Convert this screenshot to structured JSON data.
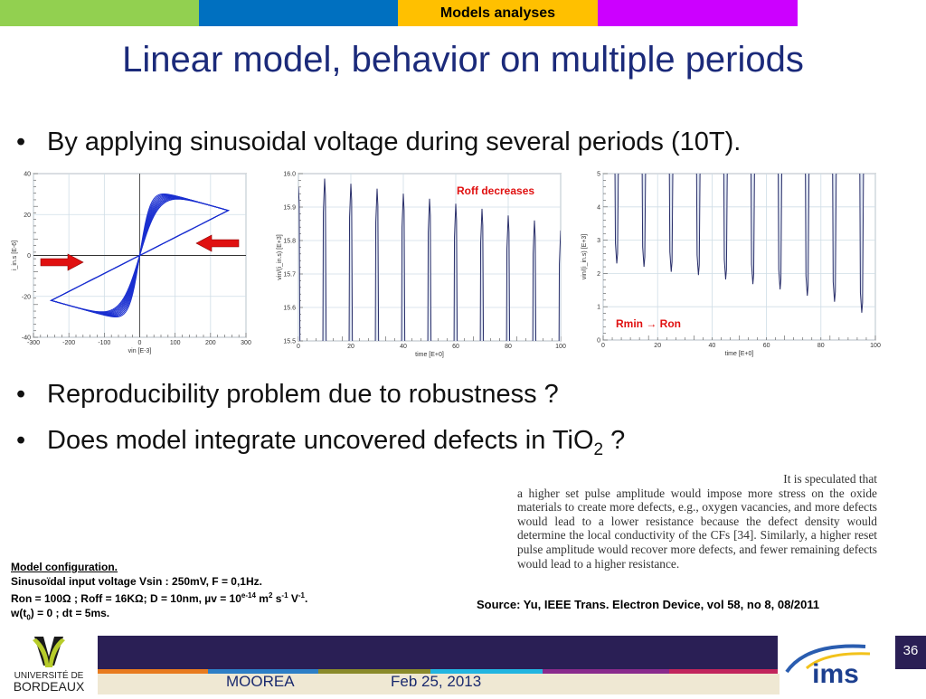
{
  "header": {
    "section_label": "Models analyses",
    "colors": [
      "#92d050",
      "#0070c0",
      "#ffc000",
      "#cc00ff"
    ]
  },
  "title": "Linear model, behavior on multiple periods",
  "bullets": [
    "By applying sinusoidal voltage during several periods (10T).",
    "Reproducibility problem due to robustness ?",
    "Does model integrate uncovered defects in TiO",
    "2",
    " ?"
  ],
  "chart_data": [
    {
      "type": "line",
      "title": "",
      "xlabel": "vin  [E-3]",
      "ylabel": "i_in.s  [E-6]",
      "xlim": [
        -300,
        300
      ],
      "ylim": [
        -40,
        40
      ],
      "xticks": [
        "-300",
        "-200",
        "-100",
        "0",
        "100",
        "200",
        "300"
      ],
      "yticks": [
        "-40",
        "-20",
        "0",
        "20",
        "40"
      ],
      "grid": true,
      "series": [
        {
          "name": "hysteresis loops (10 periods)",
          "vmax": 250,
          "i_at_vmax": 22,
          "i_peak": 30,
          "loops": 10
        }
      ],
      "annotations": [
        "arrow right (negative branch)",
        "arrow left (positive branch)"
      ]
    },
    {
      "type": "line",
      "xlabel": "time  [E+0]",
      "ylabel": "vin/(i_in.s)  [E+3]",
      "xlim": [
        0,
        100
      ],
      "ylim": [
        15.5,
        16.0
      ],
      "xticks": [
        "0",
        "20",
        "40",
        "60",
        "80",
        "100"
      ],
      "yticks": [
        "15.5",
        "15.6",
        "15.7",
        "15.8",
        "15.9",
        "16.0"
      ],
      "grid": true,
      "annotation": "Roff decreases",
      "series": [
        {
          "name": "resistance peaks",
          "x": [
            0,
            10,
            20,
            30,
            40,
            50,
            60,
            70,
            80,
            90,
            100
          ],
          "values": [
            15.96,
            15.985,
            15.97,
            15.955,
            15.94,
            15.925,
            15.91,
            15.895,
            15.875,
            15.86,
            15.83
          ]
        }
      ]
    },
    {
      "type": "line",
      "xlabel": "time  [E+0]",
      "ylabel": "vin/(i_in.s)  [E+3]",
      "xlim": [
        0,
        100
      ],
      "ylim": [
        0,
        5
      ],
      "xticks": [
        "0",
        "20",
        "40",
        "60",
        "80",
        "100"
      ],
      "yticks": [
        "0",
        "1",
        "2",
        "3",
        "4",
        "5"
      ],
      "grid": true,
      "annotation": "Rmin → Ron",
      "series": [
        {
          "name": "resistance minima",
          "x": [
            5,
            15,
            25,
            35,
            45,
            55,
            65,
            75,
            85,
            95
          ],
          "values": [
            2.3,
            2.2,
            2.05,
            1.95,
            1.82,
            1.68,
            1.52,
            1.33,
            1.15,
            0.82
          ]
        }
      ]
    }
  ],
  "quote": {
    "first": "It is speculated that",
    "body": "a higher set pulse amplitude would impose more stress on the oxide materials to create more defects, e.g., oxygen vacancies, and more defects would lead to a lower resistance because the defect density would determine the local conductivity of the CFs [34]. Similarly, a higher reset pulse amplitude would recover more defects, and fewer remaining defects would lead to a higher resistance."
  },
  "source": "Source: Yu, IEEE Trans. Electron Device, vol 58, no 8, 08/2011",
  "config": {
    "heading": "Model configuration.",
    "line1": "Sinusoïdal input voltage Vsin : 250mV, F = 0,1Hz.",
    "line2a": "Ron = 100Ω ; Roff = 16KΩ; D = 10nm, µv = 10",
    "line2sup1": "e-14",
    "line2b": " m",
    "line2sup2": "2",
    "line2c": " s",
    "line2sup3": "-1",
    "line2d": " V",
    "line2sup4": "-1",
    "line2e": ".",
    "line3a": "w(t",
    "line3sub": "0",
    "line3b": ") = 0 ; dt = 5ms."
  },
  "footer": {
    "project": "MOOREA",
    "date": "Feb 25, 2013",
    "page": "36",
    "left_logo": "UNIVERSITÉ DE BORDEAUX",
    "right_logo": "ims"
  }
}
